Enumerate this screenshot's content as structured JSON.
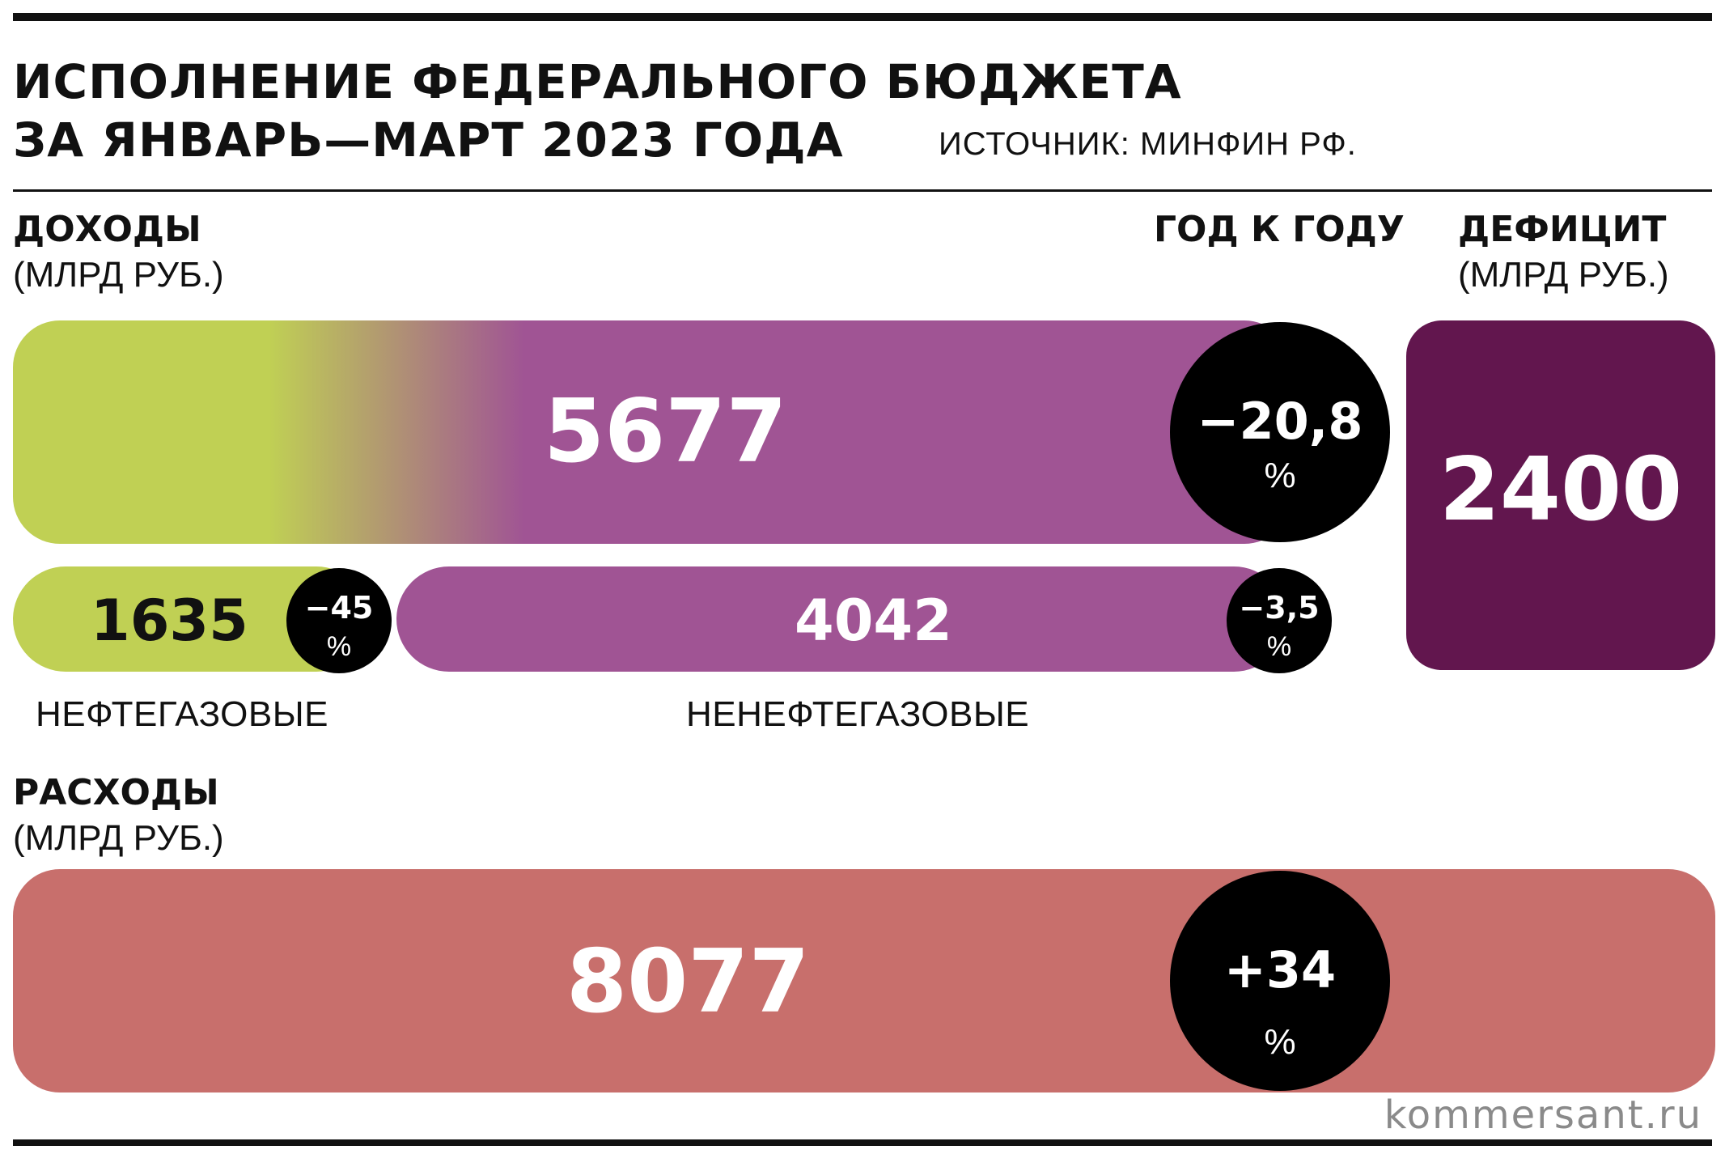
{
  "header": {
    "title_line1": "ИСПОЛНЕНИЕ ФЕДЕРАЛЬНОГО БЮДЖЕТА",
    "title_line2": "ЗА ЯНВАРЬ—МАРТ 2023 ГОДА",
    "source": "ИСТОЧНИК:  МИНФИН РФ."
  },
  "columns": {
    "income_title": "ДОХОДЫ",
    "income_unit": "(МЛРД РУБ.)",
    "yoy_title": "ГОД К ГОДУ",
    "deficit_title": "ДЕФИЦИТ",
    "deficit_unit": "(МЛРД РУБ.)",
    "expenses_title": "РАСХОДЫ",
    "expenses_unit": "(МЛРД РУБ.)"
  },
  "chart_data": {
    "type": "bar",
    "income_total": {
      "value": "5677",
      "yoy": "−20,8",
      "yoy_unit": "%"
    },
    "oil_gas": {
      "value": "1635",
      "yoy": "−45",
      "yoy_unit": "%",
      "label": "НЕФТЕГАЗОВЫЕ"
    },
    "non_oil_gas": {
      "value": "4042",
      "yoy": "−3,5",
      "yoy_unit": "%",
      "label": "НЕНЕФТЕГАЗОВЫЕ"
    },
    "deficit": {
      "value": "2400"
    },
    "expenses": {
      "value": "8077",
      "yoy": "+34",
      "yoy_unit": "%"
    }
  },
  "colors": {
    "oil_gas": "#c0d054",
    "non_oil_gas": "#a05494",
    "deficit": "#62164e",
    "expenses": "#c86f6c",
    "circle": "#000000"
  },
  "footer": {
    "watermark": "kommersant.ru"
  }
}
